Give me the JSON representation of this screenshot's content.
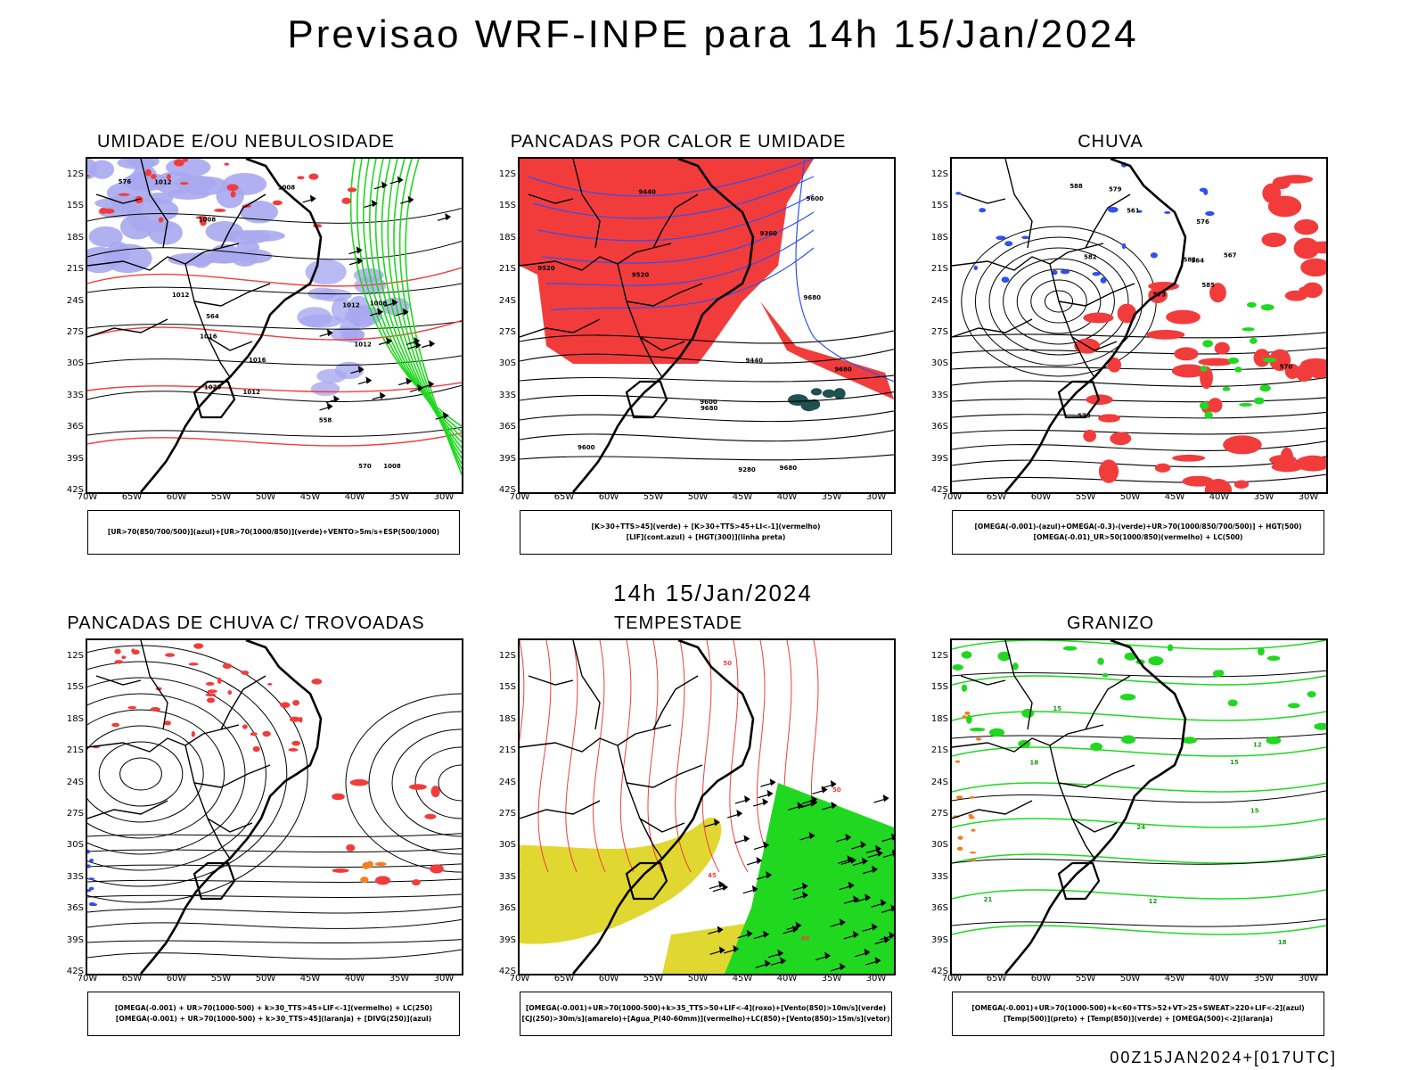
{
  "title": "Previsao WRF-INPE  para 14h 15/Jan/2024",
  "middle_title": "14h 15/Jan/2024",
  "footer": "00Z15JAN2024+[017UTC]",
  "lat_labels": [
    "12S",
    "15S",
    "18S",
    "21S",
    "24S",
    "27S",
    "30S",
    "33S",
    "36S",
    "39S",
    "42S"
  ],
  "lon_labels": [
    "70W",
    "65W",
    "60W",
    "55W",
    "50W",
    "45W",
    "40W",
    "35W",
    "30W"
  ],
  "colors": {
    "red": "#f23c3c",
    "green": "#20d820",
    "blue": "#3050f0",
    "lightblue": "#a8a8f0",
    "yellow": "#e0d830",
    "orange": "#f08020",
    "darkteal": "#205050",
    "black": "#000000"
  },
  "panels": [
    {
      "title": "UMIDADE E/OU NEBULOSIDADE",
      "legend": [
        "[UR>70(850/700/500)](azul)+[UR>70(1000/850)](verde)+VENTO>5m/s+ESP(500/1000)"
      ],
      "contour_labels": [
        "1016",
        "1012",
        "1012",
        "1012",
        "1008",
        "1008",
        "1012",
        "1016",
        "1020",
        "1012",
        "1008",
        "1008",
        "576",
        "570",
        "564",
        "558"
      ]
    },
    {
      "title": "PANCADAS POR CALOR E UMIDADE",
      "legend": [
        "[K>30+TTS>45](verde) + [K>30+TTS>45+LI<-1](vermelho)",
        "[LIF](cont.azul) + [HGT(300)](linha preta)"
      ],
      "contour_labels": [
        "9680",
        "9680",
        "9680",
        "9600",
        "9600",
        "9520",
        "9440",
        "9360",
        "9280",
        "9680",
        "9440",
        "9600",
        "9520"
      ]
    },
    {
      "title": "CHUVA",
      "legend": [
        "[OMEGA(-0.001)-(azul)+OMEGA(-0.3)-(verde)+UR>70(1000/850/700/500)] + HGT(500)",
        "[OMEGA(-0.01)_UR>50(1000/850)(vermelho) + LC(500)"
      ],
      "contour_labels": [
        "585",
        "582",
        "579",
        "576",
        "573",
        "570",
        "567",
        "564",
        "561",
        "588",
        "582",
        "579"
      ]
    },
    {
      "title": "PANCADAS DE CHUVA C/ TROVOADAS",
      "legend": [
        "[OMEGA(-0.001) + UR>70(1000-500) + k>30_TTS>45+LIF<-1](vermelho) + LC(250)",
        "[OMEGA(-0.001) + UR>70(1000-500) + k>30_TTS>45](laranja) + [DIVG(250)](azul)"
      ],
      "contour_labels": []
    },
    {
      "title": "TEMPESTADE",
      "legend": [
        "[OMEGA(-0.001)+UR>70(1000-500)+k>35_TTS>50+LIF<-4](roxo)+[Vento(850)>10m/s](verde)",
        "[CJ(250)>30m/s](amarelo)+[Agua_P(40-60mm)](vermelho)+LC(850)+[Vento(850)>15m/s](vetor)"
      ],
      "contour_labels": [
        "50",
        "45",
        "40",
        "50"
      ]
    },
    {
      "title": "GRANIZO",
      "legend": [
        "[OMEGA(-0.001)+UR>70(1000-500)+k<60+TTS>52+VT>25+SWEAT>220+LIF<-2](azul)",
        "[Temp(500)](preto) + [Temp(850)](verde) + [OMEGA(500)<-2](laranja)"
      ],
      "contour_labels": [
        "12",
        "15",
        "18",
        "21",
        "24",
        "15",
        "18",
        "12",
        "15"
      ]
    }
  ]
}
